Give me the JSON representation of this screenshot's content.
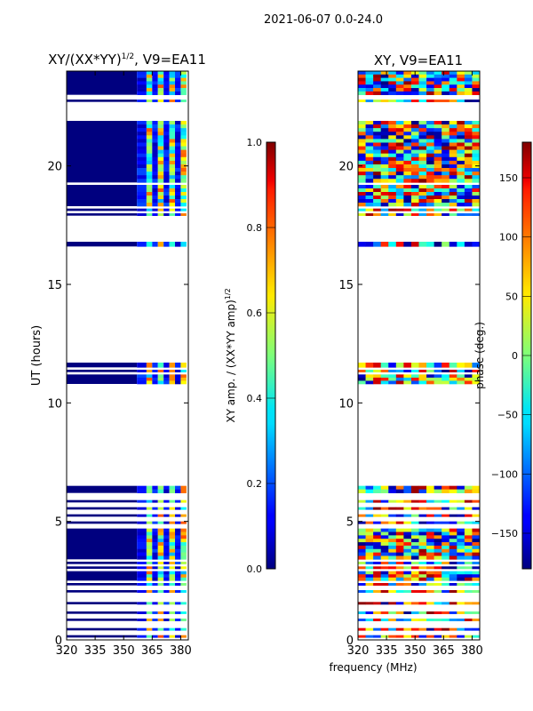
{
  "page_title": "2021-06-07 0.0-24.0",
  "chart_data": [
    {
      "type": "heatmap",
      "title_main": "XY/(XX*YY)",
      "title_sup": "1/2",
      "title_tail": ", V9=EA11",
      "ylabel": "UT (hours)",
      "xlim": [
        320,
        384
      ],
      "ylim": [
        0,
        24
      ],
      "x_ticks": [
        320,
        335,
        350,
        365,
        380
      ],
      "y_ticks": [
        0,
        5,
        10,
        15,
        20
      ],
      "data_bands_hours": [
        [
          0.1,
          0.2
        ],
        [
          0.4,
          0.5
        ],
        [
          0.8,
          0.9
        ],
        [
          1.1,
          1.2
        ],
        [
          1.5,
          1.6
        ],
        [
          2.0,
          2.1
        ],
        [
          2.3,
          2.4
        ],
        [
          2.5,
          2.9
        ],
        [
          3.0,
          3.1
        ],
        [
          3.2,
          3.3
        ],
        [
          3.4,
          4.7
        ],
        [
          4.9,
          5.0
        ],
        [
          5.2,
          5.3
        ],
        [
          5.5,
          5.6
        ],
        [
          5.8,
          5.9
        ],
        [
          6.2,
          6.5
        ],
        [
          10.8,
          11.2
        ],
        [
          11.3,
          11.4
        ],
        [
          11.5,
          11.7
        ],
        [
          16.6,
          16.8
        ],
        [
          17.9,
          18.0
        ],
        [
          18.1,
          18.2
        ],
        [
          18.3,
          19.2
        ],
        [
          19.3,
          21.9
        ],
        [
          22.7,
          22.8
        ],
        [
          23.0,
          24.0
        ]
      ],
      "clim": [
        0.0,
        1.0
      ],
      "colorbar_ticks": [
        "0.0",
        "0.2",
        "0.4",
        "0.6",
        "0.8",
        "1.0"
      ],
      "colorbar_label_main": "XY amp. / (XX*YY amp)",
      "colorbar_label_sup": "1/2"
    },
    {
      "type": "heatmap",
      "title": "XY, V9=EA11",
      "xlabel": "frequency (MHz)",
      "xlim": [
        320,
        384
      ],
      "ylim": [
        0,
        24
      ],
      "x_ticks": [
        320,
        335,
        350,
        365,
        380
      ],
      "y_ticks": [
        0,
        5,
        10,
        15,
        20
      ],
      "data_bands_hours": [
        [
          0.1,
          0.2
        ],
        [
          0.4,
          0.5
        ],
        [
          0.8,
          0.9
        ],
        [
          1.1,
          1.2
        ],
        [
          1.5,
          1.6
        ],
        [
          2.0,
          2.1
        ],
        [
          2.3,
          2.4
        ],
        [
          2.5,
          2.9
        ],
        [
          3.0,
          3.1
        ],
        [
          3.2,
          3.3
        ],
        [
          3.4,
          4.7
        ],
        [
          4.9,
          5.0
        ],
        [
          5.2,
          5.3
        ],
        [
          5.5,
          5.6
        ],
        [
          5.8,
          5.9
        ],
        [
          6.2,
          6.5
        ],
        [
          10.8,
          11.2
        ],
        [
          11.3,
          11.4
        ],
        [
          11.5,
          11.7
        ],
        [
          16.6,
          16.8
        ],
        [
          17.9,
          18.0
        ],
        [
          18.1,
          18.2
        ],
        [
          18.3,
          19.2
        ],
        [
          19.3,
          21.9
        ],
        [
          22.7,
          22.8
        ],
        [
          23.0,
          24.0
        ]
      ],
      "clim": [
        -180,
        180
      ],
      "colorbar_ticks": [
        "150",
        "100",
        "50",
        "0",
        "−50",
        "−100",
        "−150"
      ],
      "colorbar_tick_values": [
        150,
        100,
        50,
        0,
        -50,
        -100,
        -150
      ],
      "colorbar_label": "phase (deg.)"
    }
  ]
}
